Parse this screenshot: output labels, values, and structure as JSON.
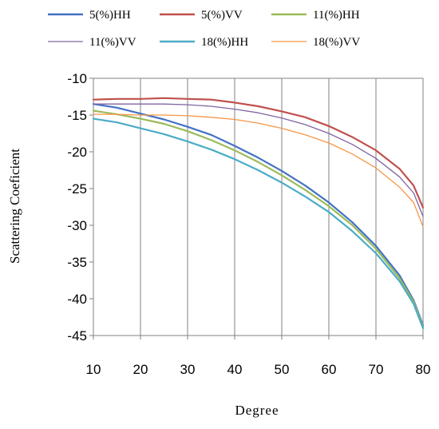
{
  "chart_data": {
    "type": "line",
    "title": "",
    "xlabel": "Degree",
    "ylabel": "Scattering Coeficient",
    "xlim": [
      10,
      80
    ],
    "ylim": [
      -45,
      -10
    ],
    "xticks": [
      10,
      20,
      30,
      40,
      50,
      60,
      70,
      80
    ],
    "yticks": [
      -10,
      -15,
      -20,
      -25,
      -30,
      -35,
      -40,
      -45
    ],
    "xtick_labels": [
      "10",
      "20",
      "30",
      "40",
      "50",
      "60",
      "70",
      "80"
    ],
    "ytick_labels": [
      "-10",
      "-15",
      "-20",
      "-25",
      "-30",
      "-35",
      "-40",
      "-45"
    ],
    "grid": "vertical",
    "legend_position": "top",
    "x": [
      10,
      15,
      20,
      25,
      30,
      35,
      40,
      45,
      50,
      55,
      60,
      65,
      70,
      75,
      78,
      80
    ],
    "series": [
      {
        "name": "5(%)HH",
        "color": "#4472c4",
        "thin": false,
        "values": [
          -13.5,
          -14.0,
          -14.8,
          -15.6,
          -16.6,
          -17.7,
          -19.2,
          -20.8,
          -22.6,
          -24.6,
          -26.9,
          -29.6,
          -32.8,
          -36.8,
          -40.2,
          -43.6
        ]
      },
      {
        "name": "5(%)VV",
        "color": "#c0504d",
        "thin": false,
        "values": [
          -12.9,
          -12.8,
          -12.8,
          -12.7,
          -12.8,
          -12.9,
          -13.3,
          -13.8,
          -14.5,
          -15.3,
          -16.5,
          -18.0,
          -19.8,
          -22.3,
          -24.6,
          -27.6
        ]
      },
      {
        "name": "11(%)HH",
        "color": "#9bbb59",
        "thin": false,
        "values": [
          -14.4,
          -14.9,
          -15.5,
          -16.2,
          -17.2,
          -18.4,
          -19.8,
          -21.4,
          -23.2,
          -25.2,
          -27.4,
          -30.0,
          -33.2,
          -37.2,
          -40.4,
          -43.8
        ]
      },
      {
        "name": "11(%)VV",
        "color": "#8064a2",
        "thin": true,
        "values": [
          -13.5,
          -13.5,
          -13.5,
          -13.5,
          -13.6,
          -13.8,
          -14.2,
          -14.7,
          -15.4,
          -16.3,
          -17.5,
          -19.0,
          -20.9,
          -23.4,
          -25.6,
          -28.8
        ]
      },
      {
        "name": "18(%)HH",
        "color": "#4bacc6",
        "thin": false,
        "values": [
          -15.5,
          -16.0,
          -16.8,
          -17.6,
          -18.6,
          -19.7,
          -21.0,
          -22.5,
          -24.2,
          -26.1,
          -28.2,
          -30.8,
          -33.8,
          -37.6,
          -40.7,
          -44.0
        ]
      },
      {
        "name": "18(%)VV",
        "color": "#f79646",
        "thin": true,
        "values": [
          -14.9,
          -14.9,
          -15.0,
          -15.0,
          -15.1,
          -15.3,
          -15.6,
          -16.1,
          -16.8,
          -17.7,
          -18.8,
          -20.3,
          -22.2,
          -24.8,
          -26.9,
          -30.2
        ]
      }
    ]
  }
}
